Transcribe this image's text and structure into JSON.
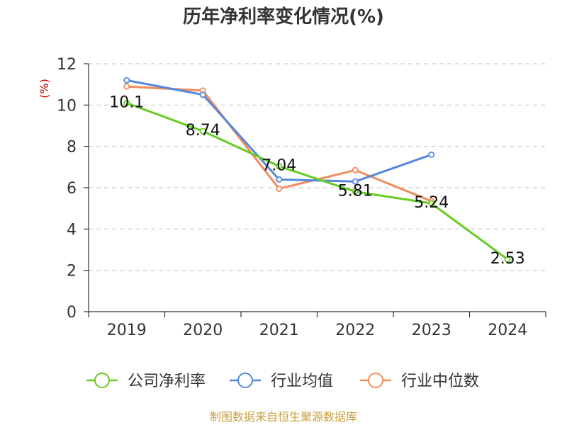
{
  "chart_data": {
    "type": "line",
    "title": "历年净利率变化情况(%)",
    "ylabel": "(%)",
    "xlabel": "",
    "categories": [
      "2019",
      "2020",
      "2021",
      "2022",
      "2023",
      "2024"
    ],
    "ylim": [
      0,
      12
    ],
    "yticks": [
      0,
      2,
      4,
      6,
      8,
      10,
      12
    ],
    "grid": true,
    "legend_position": "bottom",
    "series": [
      {
        "name": "公司净利率",
        "color": "#66cc22",
        "values": [
          10.1,
          8.74,
          7.04,
          5.81,
          5.24,
          2.53
        ],
        "labels": [
          "10.1",
          "8.74",
          "7.04",
          "5.81",
          "5.24",
          "2.53"
        ]
      },
      {
        "name": "行业均值",
        "color": "#5588dd",
        "values": [
          11.2,
          10.5,
          6.4,
          6.3,
          7.6,
          null
        ]
      },
      {
        "name": "行业中位数",
        "color": "#f28c5a",
        "values": [
          10.9,
          10.7,
          5.95,
          6.85,
          5.35,
          null
        ]
      }
    ]
  },
  "source": "制图数据来自恒生聚源数据库",
  "colors": {
    "unit": "#cc0000",
    "source": "#c8a040",
    "grid": "#cccccc",
    "axis": "#333333"
  }
}
